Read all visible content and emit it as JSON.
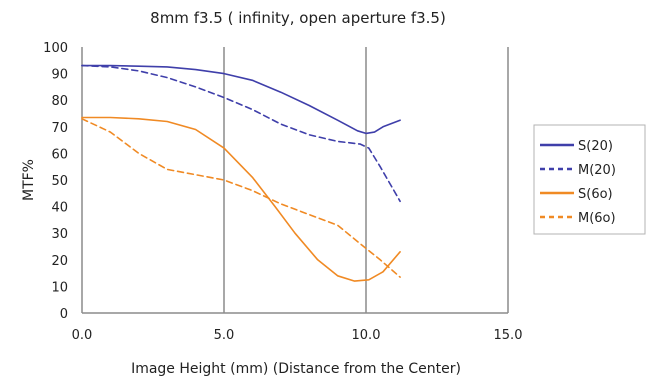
{
  "chart_data": {
    "type": "line",
    "title": "8mm f3.5 ( infinity, open aperture f3.5)",
    "xlabel": "Image Height (mm) (Distance from the Center)",
    "ylabel": "MTF%",
    "xlim": [
      0,
      15
    ],
    "ylim": [
      0,
      100
    ],
    "xticks": [
      "0.0",
      "5.0",
      "10.0",
      "15.0"
    ],
    "yticks": [
      "0",
      "10",
      "20",
      "30",
      "40",
      "50",
      "60",
      "70",
      "80",
      "90",
      "100"
    ],
    "xtick_values": [
      0,
      5,
      10,
      15
    ],
    "ytick_values": [
      0,
      10,
      20,
      30,
      40,
      50,
      60,
      70,
      80,
      90,
      100
    ],
    "grid": "vertical",
    "legend_position": "right",
    "series": [
      {
        "name": "S(20)",
        "color": "#3f3faa",
        "dash": "solid",
        "points": [
          [
            0,
            93
          ],
          [
            1,
            93
          ],
          [
            2,
            92.8
          ],
          [
            3,
            92.5
          ],
          [
            4,
            91.5
          ],
          [
            5,
            90
          ],
          [
            6,
            87.5
          ],
          [
            7,
            83
          ],
          [
            8,
            78
          ],
          [
            9,
            72.5
          ],
          [
            9.7,
            68.5
          ],
          [
            10,
            67.5
          ],
          [
            10.3,
            68
          ],
          [
            10.6,
            70
          ],
          [
            11.2,
            72.5
          ]
        ]
      },
      {
        "name": "M(20)",
        "color": "#3f3faa",
        "dash": "dashed",
        "points": [
          [
            0,
            93
          ],
          [
            1,
            92.5
          ],
          [
            2,
            91
          ],
          [
            3,
            88.5
          ],
          [
            4,
            85
          ],
          [
            5,
            81
          ],
          [
            6,
            76.5
          ],
          [
            7,
            71
          ],
          [
            8,
            67
          ],
          [
            9,
            64.5
          ],
          [
            9.8,
            63.5
          ],
          [
            10.1,
            62
          ],
          [
            10.5,
            55
          ],
          [
            11.2,
            42
          ]
        ]
      },
      {
        "name": "S(6o)",
        "color": "#f08a24",
        "dash": "solid",
        "points": [
          [
            0,
            73.5
          ],
          [
            1,
            73.5
          ],
          [
            2,
            73
          ],
          [
            3,
            72
          ],
          [
            4,
            69
          ],
          [
            5,
            62
          ],
          [
            6,
            51
          ],
          [
            6.8,
            40
          ],
          [
            7.5,
            30
          ],
          [
            8.3,
            20
          ],
          [
            9,
            14
          ],
          [
            9.6,
            12
          ],
          [
            10.1,
            12.5
          ],
          [
            10.6,
            15.5
          ],
          [
            11.2,
            23
          ]
        ]
      },
      {
        "name": "M(6o)",
        "color": "#f08a24",
        "dash": "dashed",
        "points": [
          [
            0,
            73
          ],
          [
            1,
            68
          ],
          [
            2,
            60
          ],
          [
            3,
            54
          ],
          [
            4,
            52
          ],
          [
            5,
            50
          ],
          [
            6,
            46
          ],
          [
            7,
            41
          ],
          [
            8,
            37
          ],
          [
            9,
            33
          ],
          [
            9.8,
            26
          ],
          [
            10.5,
            20
          ],
          [
            11.2,
            13.5
          ]
        ]
      }
    ]
  }
}
